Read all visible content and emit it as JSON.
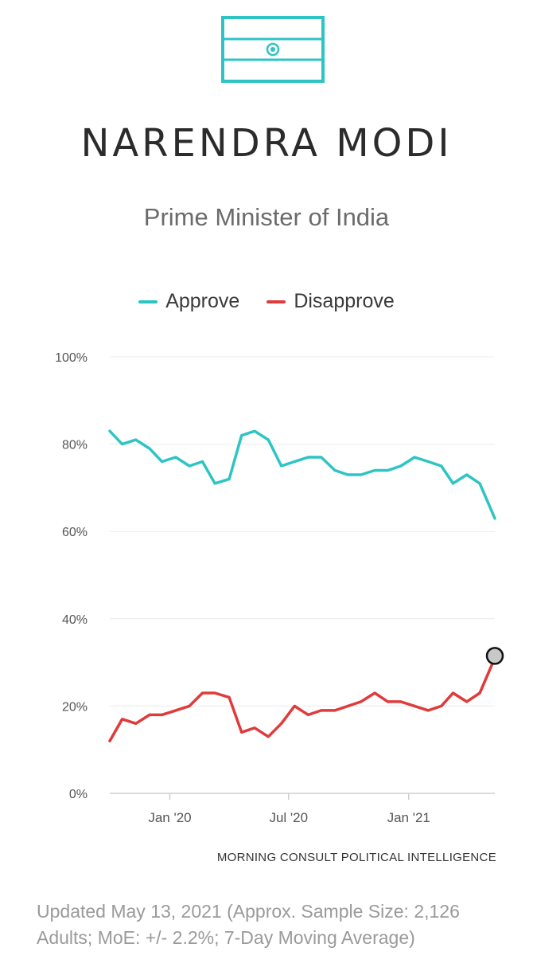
{
  "header": {
    "name": "NARENDRA MODI",
    "subtitle": "Prime Minister of India",
    "flag_color": "#2ec4c4"
  },
  "chart_data": {
    "type": "line",
    "title": "",
    "xlabel": "",
    "ylabel": "",
    "ylim": [
      0,
      100
    ],
    "yticks": [
      "0%",
      "20%",
      "40%",
      "60%",
      "80%",
      "100%"
    ],
    "xticks": [
      {
        "label": "Jan '20",
        "date": "2020-01-01"
      },
      {
        "label": "Jul '20",
        "date": "2020-07-01"
      },
      {
        "label": "Jan '21",
        "date": "2021-01-01"
      }
    ],
    "xrange": [
      "2019-10-01",
      "2021-05-13"
    ],
    "legend_position": "top-center",
    "grid": true,
    "series": [
      {
        "name": "Approve",
        "color": "#2ec4c4",
        "x": [
          "2019-10-01",
          "2019-10-20",
          "2019-11-10",
          "2019-12-01",
          "2019-12-20",
          "2020-01-10",
          "2020-01-31",
          "2020-02-20",
          "2020-03-10",
          "2020-04-01",
          "2020-04-20",
          "2020-05-10",
          "2020-05-31",
          "2020-06-20",
          "2020-07-10",
          "2020-07-31",
          "2020-08-20",
          "2020-09-10",
          "2020-09-30",
          "2020-10-20",
          "2020-11-10",
          "2020-11-30",
          "2020-12-20",
          "2021-01-10",
          "2021-01-31",
          "2021-02-20",
          "2021-03-10",
          "2021-03-31",
          "2021-04-20",
          "2021-05-13"
        ],
        "values": [
          83,
          80,
          81,
          79,
          76,
          77,
          75,
          76,
          71,
          72,
          82,
          83,
          81,
          75,
          76,
          77,
          77,
          74,
          73,
          73,
          74,
          74,
          75,
          77,
          76,
          75,
          71,
          73,
          71,
          63
        ]
      },
      {
        "name": "Disapprove",
        "color": "#e03b3b",
        "x": [
          "2019-10-01",
          "2019-10-20",
          "2019-11-10",
          "2019-12-01",
          "2019-12-20",
          "2020-01-10",
          "2020-01-31",
          "2020-02-20",
          "2020-03-10",
          "2020-04-01",
          "2020-04-20",
          "2020-05-10",
          "2020-05-31",
          "2020-06-20",
          "2020-07-10",
          "2020-07-31",
          "2020-08-20",
          "2020-09-10",
          "2020-09-30",
          "2020-10-20",
          "2020-11-10",
          "2020-11-30",
          "2020-12-20",
          "2021-01-10",
          "2021-01-31",
          "2021-02-20",
          "2021-03-10",
          "2021-03-31",
          "2021-04-20",
          "2021-05-13"
        ],
        "values": [
          12,
          17,
          16,
          18,
          18,
          19,
          20,
          23,
          23,
          22,
          14,
          15,
          13,
          16,
          20,
          18,
          19,
          19,
          20,
          21,
          23,
          21,
          21,
          20,
          19,
          20,
          23,
          21,
          23,
          31
        ]
      }
    ],
    "marker": {
      "series": "Disapprove",
      "date": "2021-05-13",
      "value": 31.5,
      "fill": "#c8c8c8"
    }
  },
  "source_label": "MORNING CONSULT POLITICAL INTELLIGENCE",
  "footnote": {
    "line1": "Updated May 13, 2021 (Approx. Sample Size: 2,126",
    "line2": "Adults; MoE: +/- 2.2%; 7-Day Moving Average)"
  }
}
